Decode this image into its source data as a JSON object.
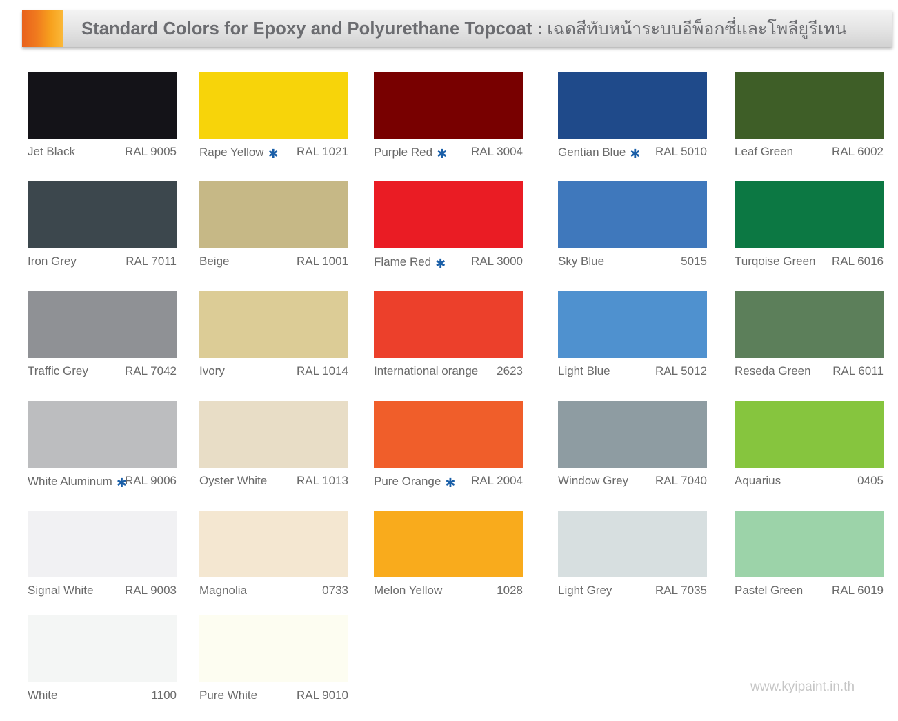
{
  "header": {
    "title_en": "Standard Colors for Epoxy and Polyurethane Topcoat :",
    "title_th": "เฉดสีทับหน้าระบบอีพ็อกซี่และโพลียูรีเทน"
  },
  "colors": [
    {
      "name": "Jet Black",
      "code": "RAL 9005",
      "hex": "#141318",
      "star": false
    },
    {
      "name": "Rape Yellow",
      "code": "RAL 1021",
      "hex": "#f7d40a",
      "star": true
    },
    {
      "name": "Purple Red",
      "code": "RAL 3004",
      "hex": "#780000",
      "star": true
    },
    {
      "name": "Gentian Blue",
      "code": "RAL 5010",
      "hex": "#1f4a8a",
      "star": true
    },
    {
      "name": "Leaf Green",
      "code": "RAL 6002",
      "hex": "#3e5e27",
      "star": false
    },
    {
      "name": "Iron Grey",
      "code": "RAL 7011",
      "hex": "#3c474d",
      "star": false
    },
    {
      "name": "Beige",
      "code": "RAL 1001",
      "hex": "#c6b886",
      "star": false
    },
    {
      "name": "Flame Red",
      "code": "RAL 3000",
      "hex": "#ea1c24",
      "star": true
    },
    {
      "name": "Sky Blue",
      "code": "5015",
      "hex": "#3f78bc",
      "star": false
    },
    {
      "name": "Turqoise Green",
      "code": "RAL 6016",
      "hex": "#0c7843",
      "star": false
    },
    {
      "name": "Traffic Grey",
      "code": "RAL 7042",
      "hex": "#8f9195",
      "star": false
    },
    {
      "name": "Ivory",
      "code": "RAL 1014",
      "hex": "#dccc96",
      "star": false
    },
    {
      "name": "International orange",
      "code": "2623",
      "hex": "#ec402b",
      "star": false
    },
    {
      "name": "Light Blue",
      "code": "RAL 5012",
      "hex": "#4f91cf",
      "star": false
    },
    {
      "name": "Reseda Green",
      "code": "RAL 6011",
      "hex": "#5c7f5a",
      "star": false
    },
    {
      "name": "White Aluminum",
      "code": "RAL 9006",
      "hex": "#bcbdbf",
      "star": true
    },
    {
      "name": "Oyster White",
      "code": "RAL 1013",
      "hex": "#e8ddc6",
      "star": false
    },
    {
      "name": "Pure Orange",
      "code": "RAL 2004",
      "hex": "#f05e2a",
      "star": true
    },
    {
      "name": "Window Grey",
      "code": "RAL 7040",
      "hex": "#8e9ca2",
      "star": false
    },
    {
      "name": "Aquarius",
      "code": "0405",
      "hex": "#86c53e",
      "star": false
    },
    {
      "name": "Signal White",
      "code": "RAL 9003",
      "hex": "#f1f1f3",
      "star": false
    },
    {
      "name": "Magnolia",
      "code": "0733",
      "hex": "#f4e7d1",
      "star": false
    },
    {
      "name": "Melon Yellow",
      "code": "1028",
      "hex": "#f9ab1c",
      "star": false
    },
    {
      "name": "Light Grey",
      "code": "RAL 7035",
      "hex": "#d7dfe0",
      "star": false
    },
    {
      "name": "Pastel Green",
      "code": "RAL 6019",
      "hex": "#9cd3a9",
      "star": false
    },
    {
      "name": "White",
      "code": "1100",
      "hex": "#f4f6f5",
      "star": false
    },
    {
      "name": "Pure White",
      "code": "RAL 9010",
      "hex": "#fdfdf1",
      "star": false
    }
  ],
  "footer": {
    "website": "www.kyipaint.in.th"
  }
}
